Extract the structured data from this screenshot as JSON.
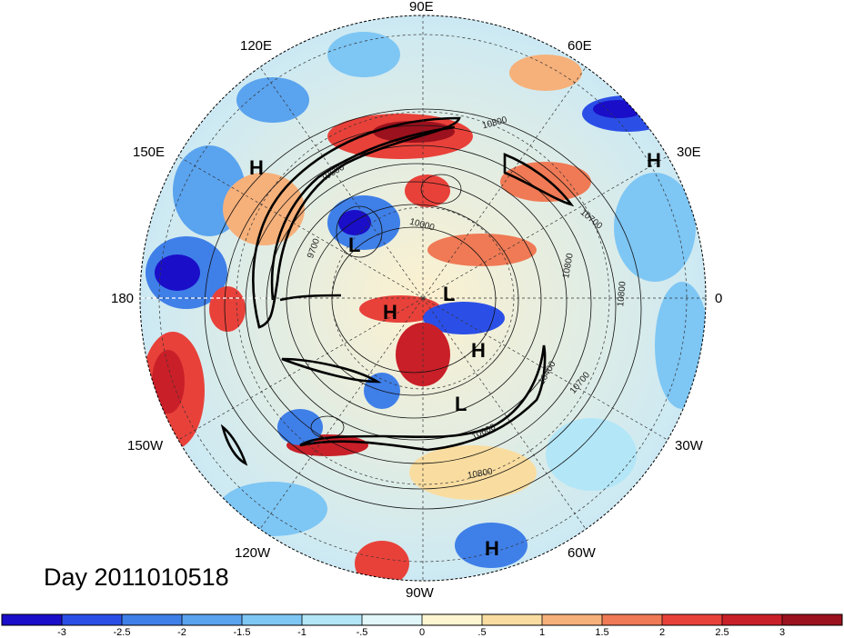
{
  "title": "Day 2011010518",
  "longitude_labels": {
    "top": "90E",
    "top_left": "120E",
    "top_right": "60E",
    "left_upper": "150E",
    "right_upper": "30E",
    "left": "180",
    "right": "0",
    "left_lower": "150W",
    "right_lower": "30W",
    "bottom_left": "120W",
    "bottom_right": "60W",
    "bottom": "90W"
  },
  "pressure_centers": [
    "H",
    "H",
    "L",
    "L",
    "H",
    "H",
    "L",
    "H"
  ],
  "contour_labels": [
    "10800",
    "10700",
    "10600",
    "10000",
    "9700",
    "10400",
    "10800",
    "10700",
    "10600",
    "10800",
    "10800"
  ],
  "colorbar": {
    "ticks": [
      "-3",
      "-2.5",
      "-2",
      "-1.5",
      "-1",
      "-.5",
      "0",
      ".5",
      "1",
      "1.5",
      "2",
      "2.5",
      "3"
    ],
    "colors": [
      "#1a0ec9",
      "#2b4fe6",
      "#3f7fe8",
      "#5aa3ee",
      "#7ec6f4",
      "#b3e6f7",
      "#e0f6f8",
      "#fdf6d0",
      "#f9dda0",
      "#f6b07a",
      "#ef7a55",
      "#e8413a",
      "#c91f28",
      "#9b111d"
    ]
  }
}
